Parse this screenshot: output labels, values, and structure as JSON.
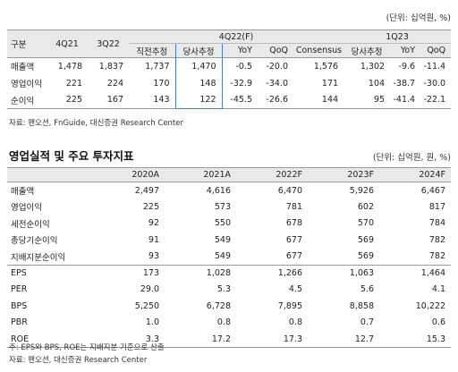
{
  "table1": {
    "unit": "(단위: 십억원, %)",
    "header_groups": {
      "col1": "구분",
      "col2": "4Q21",
      "col3": "3Q22",
      "group1": "4Q22(F)",
      "group2": "1Q23"
    },
    "subheaders": [
      "직전추정",
      "당사추정",
      "YoY",
      "QoQ",
      "Consensus",
      "당사추정",
      "YoY",
      "QoQ"
    ],
    "rows": [
      {
        "label": "매출액",
        "values": [
          "1,478",
          "1,837",
          "1,737",
          "1,470",
          "-0.5",
          "-20.0",
          "1,576",
          "1,302",
          "-9.6",
          "-11.4"
        ]
      },
      {
        "label": "영업이익",
        "values": [
          "221",
          "224",
          "170",
          "148",
          "-32.9",
          "-34.0",
          "171",
          "104",
          "-38.7",
          "-30.0"
        ]
      },
      {
        "label": "순이익",
        "values": [
          "225",
          "167",
          "143",
          "122",
          "-45.5",
          "-26.6",
          "144",
          "95",
          "-41.4",
          "-22.1"
        ]
      }
    ],
    "source": "자료: 팬오션, FnGuide, 대신증권 Research Center"
  },
  "table2": {
    "title": "영업실적 및 주요 투자지표",
    "unit": "(단위: 십억원, 원, %)",
    "columns": [
      "2020A",
      "2021A",
      "2022F",
      "2023F",
      "2024F"
    ],
    "group1": [
      {
        "label": "매출액",
        "values": [
          "2,497",
          "4,616",
          "6,470",
          "5,926",
          "6,467"
        ]
      },
      {
        "label": "영업이익",
        "values": [
          "225",
          "573",
          "781",
          "602",
          "817"
        ]
      },
      {
        "label": "세전순이익",
        "values": [
          "92",
          "550",
          "678",
          "570",
          "784"
        ]
      },
      {
        "label": "총당기순이익",
        "values": [
          "91",
          "549",
          "677",
          "569",
          "782"
        ]
      },
      {
        "label": "지배지분순이익",
        "values": [
          "93",
          "549",
          "677",
          "569",
          "782"
        ]
      }
    ],
    "group2": [
      {
        "label": "EPS",
        "values": [
          "173",
          "1,028",
          "1,266",
          "1,063",
          "1,464"
        ]
      },
      {
        "label": "PER",
        "values": [
          "29.0",
          "5.3",
          "4.5",
          "5.6",
          "4.1"
        ]
      },
      {
        "label": "BPS",
        "values": [
          "5,250",
          "6,728",
          "7,895",
          "8,858",
          "10,222"
        ]
      },
      {
        "label": "PBR",
        "values": [
          "1.0",
          "0.8",
          "0.8",
          "0.7",
          "0.6"
        ]
      },
      {
        "label": "ROE",
        "values": [
          "3.3",
          "17.2",
          "17.3",
          "12.7",
          "15.3"
        ]
      }
    ],
    "note": "주: EPS와 BPS, ROE는 지배지분 기준으로 산출",
    "source": "자료: 팬오션, 대신증권 Research Center"
  }
}
